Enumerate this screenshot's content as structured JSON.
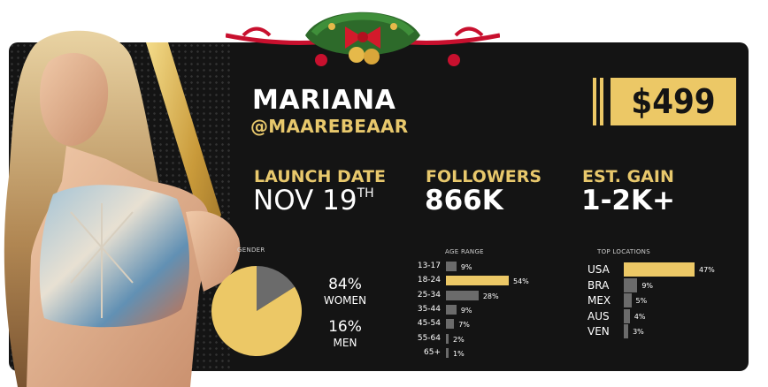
{
  "profile": {
    "name": "MARIANA",
    "handle": "@MAAREBEAAR",
    "price": "$499"
  },
  "stats": {
    "launch_label": "LAUNCH DATE",
    "launch_value": "NOV 19",
    "launch_suffix": "TH",
    "followers_label": "FOLLOWERS",
    "followers_value": "866K",
    "gain_label": "EST. GAIN",
    "gain_value": "1-2K+"
  },
  "gender": {
    "label": "GENDER",
    "women_pct": "84%",
    "women_label": "WOMEN",
    "men_pct": "16%",
    "men_label": "MEN"
  },
  "colors": {
    "gold": "#ecc866",
    "gray": "#6b6b6b",
    "card": "#141414"
  },
  "chart_data": [
    {
      "type": "pie",
      "categories": [
        "WOMEN",
        "MEN"
      ],
      "values": [
        84,
        16
      ],
      "title": "GENDER"
    },
    {
      "type": "bar",
      "orientation": "horizontal",
      "title": "AGE RANGE",
      "categories": [
        "13-17",
        "18-24",
        "25-34",
        "35-44",
        "45-54",
        "55-64",
        "65+"
      ],
      "values": [
        9,
        54,
        28,
        9,
        7,
        2,
        1
      ],
      "labels": [
        "9%",
        "54%",
        "28%",
        "9%",
        "7%",
        "2%",
        "1%"
      ],
      "highlight": "18-24"
    },
    {
      "type": "bar",
      "orientation": "horizontal",
      "title": "TOP LOCATIONS",
      "categories": [
        "USA",
        "BRA",
        "MEX",
        "AUS",
        "VEN"
      ],
      "values": [
        47,
        9,
        5,
        4,
        3
      ],
      "labels": [
        "47%",
        "9%",
        "5%",
        "4%",
        "3%"
      ],
      "highlight": "USA"
    }
  ]
}
